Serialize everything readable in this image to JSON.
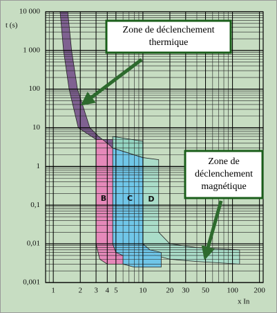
{
  "chart_data": {
    "type": "area",
    "y_label": "t (s)",
    "x_label": "x In",
    "log_x": true,
    "log_y": true,
    "grid": true,
    "minor_grid": true,
    "xlim": [
      0.82,
      220
    ],
    "ylim": [
      0.001,
      10000
    ],
    "xticks": [
      1,
      2,
      3,
      4,
      5,
      10,
      20,
      30,
      50,
      100,
      200
    ],
    "yticks": [
      {
        "value": 0.001,
        "label": "0,001"
      },
      {
        "value": 0.01,
        "label": "0,01"
      },
      {
        "value": 0.1,
        "label": "0,1"
      },
      1,
      10,
      100,
      {
        "value": 1000,
        "label": "1 000"
      },
      {
        "value": 10000,
        "label": "10 000"
      }
    ],
    "series": [
      {
        "name": "D",
        "color": "#a9dcc9",
        "x": [
          10,
          15,
          15,
          20,
          40,
          120,
          120,
          40,
          20,
          14,
          11,
          10
        ],
        "values": [
          1.7,
          1.5,
          0.02,
          0.01,
          0.008,
          0.007,
          0.003,
          0.0035,
          0.004,
          0.005,
          0.008,
          0.01
        ]
      },
      {
        "name": "C",
        "color": "#6cc4ea",
        "x": [
          4.6,
          10,
          10,
          12,
          16,
          16,
          8,
          6,
          5,
          4.6
        ],
        "values": [
          3,
          1.7,
          0.01,
          0.007,
          0.006,
          0.0025,
          0.0025,
          0.003,
          0.005,
          0.01
        ]
      },
      {
        "color": "#93d5c3",
        "x": [
          4.6,
          10,
          10,
          4.6
        ],
        "values": [
          6,
          4.5,
          1.7,
          3
        ]
      },
      {
        "name": "B",
        "color": "#e884b9",
        "x": [
          3,
          4.6,
          4.6,
          5,
          6,
          6,
          4,
          3.3,
          3
        ],
        "values": [
          5,
          5,
          0.01,
          0.006,
          0.005,
          0.003,
          0.003,
          0.004,
          0.01
        ]
      },
      {
        "color": "#7b5a8e",
        "x": [
          1.19,
          1.3,
          1.5,
          1.9,
          2.4,
          3,
          4.6,
          4.6,
          4,
          3.2,
          2.56,
          2.2,
          1.86,
          1.6,
          1.45
        ],
        "values": [
          10000,
          1000,
          100,
          10,
          7,
          5,
          5,
          3,
          4,
          6,
          10,
          30,
          100,
          1000,
          10000
        ]
      }
    ],
    "annotations": [
      {
        "lines": [
          "Zone de déclenchement",
          "thermique"
        ]
      },
      {
        "lines": [
          "Zone de",
          "déclenchement",
          "magnétique"
        ]
      }
    ]
  }
}
